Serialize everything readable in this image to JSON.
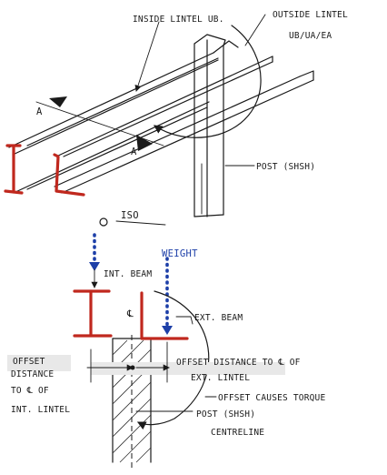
{
  "iso_view": {
    "inside_lintel_label": "INSIDE LINTEL UB.",
    "outside_lintel_label_line1": "OUTSIDE LINTEL",
    "outside_lintel_label_line2": "UB/UA/EA",
    "section_marker_left": "A",
    "section_marker_right": "A",
    "post_label": "POST (SHSH)",
    "view_label": "ISO"
  },
  "section_view": {
    "weight_label": "WEIGHT",
    "int_beam_label": "INT. BEAM",
    "centreline_symbol": "℄",
    "ext_beam_label": "EXT. BEAM",
    "left_offset_line1": "OFFSET",
    "left_offset_line2": "DISTANCE",
    "left_offset_line3": "TO ℄ OF",
    "left_offset_line4": "INT. LINTEL",
    "right_offset_line1": "OFFSET DISTANCE TO ℄ OF",
    "right_offset_line2": "EXT. LINTEL",
    "torque_label": "OFFSET CAUSES TORQUE",
    "post_line1": "POST (SHSH)",
    "post_line2": "CENTRELINE"
  },
  "colors": {
    "ink": "#1a1a1a",
    "steel_section": "#c0281e",
    "load_arrow": "#1d3fa8",
    "highlight": "#e8e8e8"
  }
}
